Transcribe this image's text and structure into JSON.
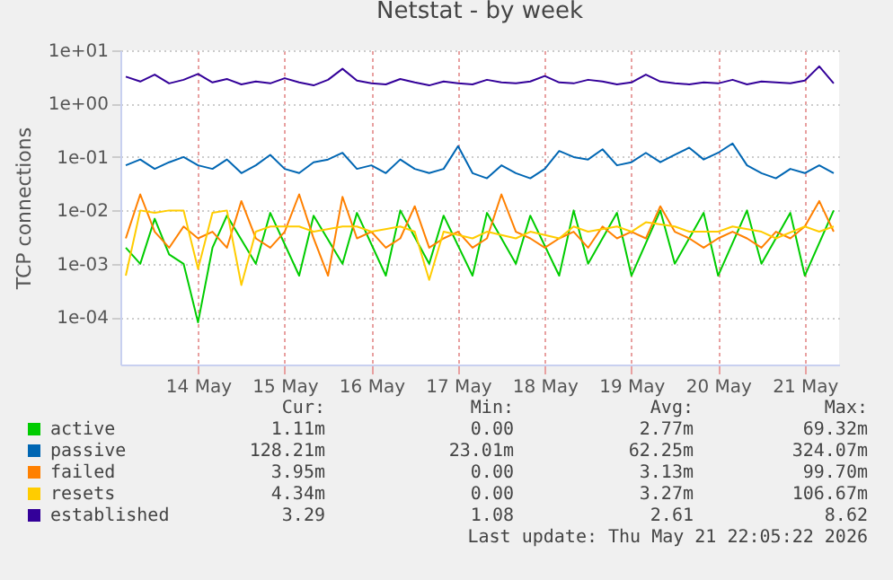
{
  "chart_data": {
    "type": "line",
    "title": "Netstat - by week",
    "ylabel": "TCP connections",
    "x": [
      "2026-05-13T04:00",
      "2026-05-13T08:00",
      "2026-05-13T12:00",
      "2026-05-13T16:00",
      "2026-05-13T20:00",
      "2026-05-14T00:00",
      "2026-05-14T04:00",
      "2026-05-14T08:00",
      "2026-05-14T12:00",
      "2026-05-14T16:00",
      "2026-05-14T20:00",
      "2026-05-15T00:00",
      "2026-05-15T04:00",
      "2026-05-15T08:00",
      "2026-05-15T12:00",
      "2026-05-15T16:00",
      "2026-05-15T20:00",
      "2026-05-16T00:00",
      "2026-05-16T04:00",
      "2026-05-16T08:00",
      "2026-05-16T12:00",
      "2026-05-16T16:00",
      "2026-05-16T20:00",
      "2026-05-17T00:00",
      "2026-05-17T04:00",
      "2026-05-17T08:00",
      "2026-05-17T12:00",
      "2026-05-17T16:00",
      "2026-05-17T20:00",
      "2026-05-18T00:00",
      "2026-05-18T04:00",
      "2026-05-18T08:00",
      "2026-05-18T12:00",
      "2026-05-18T16:00",
      "2026-05-18T20:00",
      "2026-05-19T00:00",
      "2026-05-19T04:00",
      "2026-05-19T08:00",
      "2026-05-19T12:00",
      "2026-05-19T16:00",
      "2026-05-19T20:00",
      "2026-05-20T00:00",
      "2026-05-20T04:00",
      "2026-05-20T08:00",
      "2026-05-20T12:00",
      "2026-05-20T16:00",
      "2026-05-20T20:00",
      "2026-05-21T00:00",
      "2026-05-21T04:00",
      "2026-05-21T08:00"
    ],
    "series": [
      {
        "name": "active",
        "color": "#00cc00",
        "values": [
          0.002,
          0.001,
          0.007,
          0.0015,
          0.001,
          8e-05,
          0.002,
          0.008,
          null,
          0.001,
          0.009,
          null,
          0.0006,
          0.008,
          null,
          0.001,
          0.009,
          null,
          0.0006,
          0.01,
          null,
          0.001,
          0.008,
          null,
          0.0006,
          0.009,
          null,
          0.001,
          0.008,
          null,
          0.0006,
          0.01,
          0.001,
          null,
          0.009,
          0.0006,
          null,
          0.01,
          0.001,
          null,
          0.009,
          0.0006,
          null,
          0.01,
          0.001,
          null,
          0.009,
          0.0006,
          null,
          0.01
        ]
      },
      {
        "name": "passive",
        "color": "#0066b3",
        "values": [
          0.07,
          0.09,
          0.06,
          0.08,
          0.1,
          0.07,
          0.06,
          0.09,
          0.05,
          0.07,
          0.11,
          0.06,
          0.05,
          0.08,
          0.09,
          0.12,
          0.06,
          0.07,
          0.05,
          0.09,
          0.06,
          0.05,
          0.06,
          0.16,
          0.05,
          0.04,
          0.07,
          0.05,
          0.04,
          0.06,
          0.13,
          0.1,
          0.09,
          0.14,
          0.07,
          0.08,
          0.12,
          0.08,
          0.11,
          0.15,
          0.09,
          0.12,
          0.18,
          0.07,
          0.05,
          0.04,
          0.06,
          0.05,
          0.07,
          0.05
        ]
      },
      {
        "name": "failed",
        "color": "#ff8000",
        "values": [
          0.003,
          0.02,
          0.004,
          0.002,
          0.005,
          0.003,
          0.004,
          0.002,
          0.015,
          0.003,
          0.002,
          0.004,
          0.02,
          0.003,
          0.0006,
          0.018,
          0.003,
          0.004,
          0.002,
          0.003,
          0.012,
          0.002,
          0.003,
          0.004,
          0.002,
          0.003,
          0.02,
          0.004,
          0.003,
          0.002,
          0.003,
          0.004,
          0.002,
          0.005,
          0.003,
          0.004,
          0.003,
          0.012,
          0.004,
          0.003,
          0.002,
          0.003,
          0.004,
          0.003,
          0.002,
          0.004,
          0.003,
          0.005,
          0.015,
          0.004
        ]
      },
      {
        "name": "resets",
        "color": "#ffcc00",
        "values": [
          0.0006,
          0.01,
          0.009,
          0.01,
          0.01,
          0.0008,
          0.009,
          0.01,
          0.0004,
          0.004,
          0.005,
          null,
          0.005,
          0.004,
          null,
          0.005,
          0.005,
          0.004,
          null,
          0.005,
          0.004,
          0.0005,
          0.004,
          null,
          0.003,
          0.004,
          null,
          0.003,
          0.004,
          null,
          0.003,
          0.005,
          0.004,
          null,
          0.005,
          0.004,
          0.006,
          null,
          0.005,
          0.004,
          null,
          0.004,
          0.005,
          null,
          0.004,
          0.003,
          null,
          0.005,
          0.004,
          0.005
        ]
      },
      {
        "name": "established",
        "color": "#330099",
        "values": [
          3.2,
          2.6,
          3.5,
          2.4,
          2.8,
          3.6,
          2.5,
          2.9,
          2.3,
          2.6,
          2.4,
          3.0,
          2.5,
          2.2,
          2.8,
          4.5,
          2.7,
          2.4,
          2.3,
          2.9,
          2.5,
          2.2,
          2.6,
          2.4,
          2.3,
          2.8,
          2.5,
          2.4,
          2.6,
          3.3,
          2.5,
          2.4,
          2.8,
          2.6,
          2.3,
          2.5,
          3.5,
          2.6,
          2.4,
          2.3,
          2.5,
          2.4,
          2.8,
          2.3,
          2.6,
          2.5,
          2.4,
          2.7,
          5.0,
          2.4
        ]
      }
    ],
    "xlim": [
      "2026-05-13T02:30",
      "2026-05-21T09:30"
    ],
    "xticks": [
      {
        "value": "2026-05-14",
        "label": "14 May"
      },
      {
        "value": "2026-05-15",
        "label": "15 May"
      },
      {
        "value": "2026-05-16",
        "label": "16 May"
      },
      {
        "value": "2026-05-17",
        "label": "17 May"
      },
      {
        "value": "2026-05-18",
        "label": "18 May"
      },
      {
        "value": "2026-05-19",
        "label": "19 May"
      },
      {
        "value": "2026-05-20",
        "label": "20 May"
      },
      {
        "value": "2026-05-21",
        "label": "21 May"
      }
    ],
    "ylim": [
      1.3e-05,
      10
    ],
    "yticks": [
      {
        "value": 10,
        "label": "1e+01"
      },
      {
        "value": 1,
        "label": "1e+00"
      },
      {
        "value": 0.1,
        "label": "1e-01"
      },
      {
        "value": 0.01,
        "label": "1e-02"
      },
      {
        "value": 0.001,
        "label": "1e-03"
      },
      {
        "value": 0.0001,
        "label": "1e-04"
      }
    ],
    "log": "y",
    "grid": true,
    "legend": "bottom",
    "annotations": [
      "Cur:",
      "Min:",
      "Avg:",
      "Max:",
      "1.11m",
      "0.00",
      "2.77m",
      "69.32m",
      "128.21m",
      "23.01m",
      "62.25m",
      "324.07m",
      "3.95m",
      "0.00",
      "3.13m",
      "99.70m",
      "4.34m",
      "0.00",
      "3.27m",
      "106.67m",
      "3.29",
      "1.08",
      "2.61",
      "8.62",
      "Last update: Thu May 21 22:05:22 2026"
    ]
  }
}
